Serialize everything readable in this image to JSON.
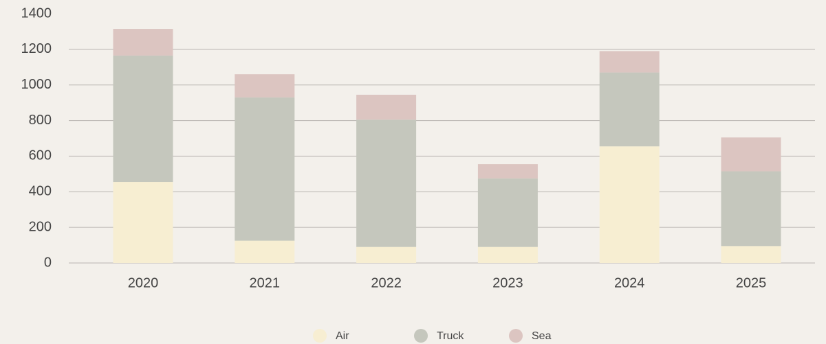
{
  "chart_data": {
    "type": "stacked_bar",
    "categories": [
      "2020",
      "2021",
      "2022",
      "2023",
      "2024",
      "2025"
    ],
    "series": [
      {
        "name": "Air",
        "color": "#f7eed2",
        "values": [
          455,
          125,
          90,
          90,
          655,
          95
        ]
      },
      {
        "name": "Truck",
        "color": "#c5c7bd",
        "values": [
          710,
          805,
          715,
          385,
          415,
          420
        ]
      },
      {
        "name": "Sea",
        "color": "#dcc5c1",
        "values": [
          150,
          130,
          140,
          80,
          120,
          190
        ]
      }
    ],
    "ylim": [
      0,
      1400
    ],
    "yticks": [
      0,
      200,
      400,
      600,
      800,
      1000,
      1200,
      1400
    ],
    "grid": true,
    "legend": "bottom"
  }
}
